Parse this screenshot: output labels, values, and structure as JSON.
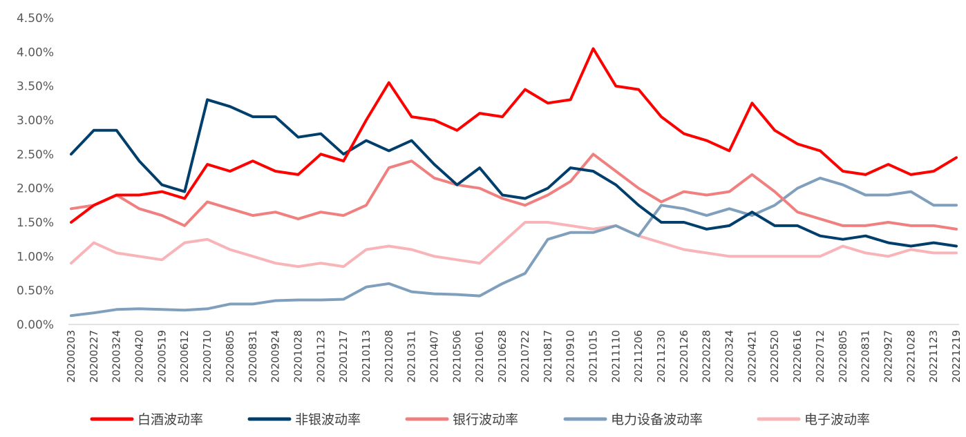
{
  "chart_data": {
    "type": "line",
    "title": "",
    "xlabel": "",
    "ylabel": "",
    "ylim": [
      0,
      0.045
    ],
    "y_ticks": [
      "0.00%",
      "0.50%",
      "1.00%",
      "1.50%",
      "2.00%",
      "2.50%",
      "3.00%",
      "3.50%",
      "4.00%",
      "4.50%"
    ],
    "categories": [
      "20200203",
      "20200227",
      "20200324",
      "20200420",
      "20200519",
      "20200612",
      "20200710",
      "20200805",
      "20200831",
      "20200924",
      "20201028",
      "20201123",
      "20201217",
      "20210113",
      "20210208",
      "20210311",
      "20210407",
      "20210506",
      "20210601",
      "20210628",
      "20210722",
      "20210817",
      "20210910",
      "20211015",
      "20211110",
      "20211206",
      "20211230",
      "20220126",
      "20220228",
      "20220324",
      "20220421",
      "20220520",
      "20220616",
      "20220712",
      "20220805",
      "20220831",
      "20220927",
      "20221028",
      "20221123",
      "20221219"
    ],
    "legend_position": "bottom",
    "grid": false,
    "series": [
      {
        "name": "白酒波动率",
        "color": "#ff0000",
        "values": [
          0.015,
          0.0175,
          0.019,
          0.019,
          0.0195,
          0.0185,
          0.0235,
          0.0225,
          0.024,
          0.0225,
          0.022,
          0.025,
          0.024,
          0.03,
          0.0355,
          0.0305,
          0.03,
          0.0285,
          0.031,
          0.0305,
          0.0345,
          0.0325,
          0.033,
          0.0405,
          0.035,
          0.0345,
          0.0305,
          0.028,
          0.027,
          0.0255,
          0.0325,
          0.0285,
          0.0265,
          0.0255,
          0.0225,
          0.022,
          0.0235,
          0.022,
          0.0225,
          0.0245
        ]
      },
      {
        "name": "非银波动率",
        "color": "#003f6b",
        "values": [
          0.025,
          0.0285,
          0.0285,
          0.024,
          0.0205,
          0.0195,
          0.033,
          0.032,
          0.0305,
          0.0305,
          0.0275,
          0.028,
          0.025,
          0.027,
          0.0255,
          0.027,
          0.0235,
          0.0205,
          0.023,
          0.019,
          0.0185,
          0.02,
          0.023,
          0.0225,
          0.0205,
          0.0175,
          0.015,
          0.015,
          0.014,
          0.0145,
          0.0165,
          0.0145,
          0.0145,
          0.013,
          0.0125,
          0.013,
          0.012,
          0.0115,
          0.012,
          0.0115
        ]
      },
      {
        "name": "银行波动率",
        "color": "#f08080",
        "values": [
          0.017,
          0.0175,
          0.019,
          0.017,
          0.016,
          0.0145,
          0.018,
          0.017,
          0.016,
          0.0165,
          0.0155,
          0.0165,
          0.016,
          0.0175,
          0.023,
          0.024,
          0.0215,
          0.0205,
          0.02,
          0.0185,
          0.0175,
          0.019,
          0.021,
          0.025,
          0.0225,
          0.02,
          0.018,
          0.0195,
          0.019,
          0.0195,
          0.022,
          0.0195,
          0.0165,
          0.0155,
          0.0145,
          0.0145,
          0.015,
          0.0145,
          0.0145,
          0.014
        ]
      },
      {
        "name": "电力设备波动率",
        "color": "#7f9fbc",
        "values": [
          0.0013,
          0.0017,
          0.0022,
          0.0023,
          0.0022,
          0.0021,
          0.0023,
          0.003,
          0.003,
          0.0035,
          0.0036,
          0.0036,
          0.0037,
          0.0055,
          0.006,
          0.0048,
          0.0045,
          0.0044,
          0.0042,
          0.006,
          0.0075,
          0.0125,
          0.0135,
          0.0135,
          0.0145,
          0.013,
          0.0175,
          0.017,
          0.016,
          0.017,
          0.016,
          0.0175,
          0.02,
          0.0215,
          0.0205,
          0.019,
          0.019,
          0.0195,
          0.0175,
          0.0175
        ]
      },
      {
        "name": "电子波动率",
        "color": "#f8b4b8",
        "values": [
          0.009,
          0.012,
          0.0105,
          0.01,
          0.0095,
          0.012,
          0.0125,
          0.011,
          0.01,
          0.009,
          0.0085,
          0.009,
          0.0085,
          0.011,
          0.0115,
          0.011,
          0.01,
          0.0095,
          0.009,
          0.012,
          0.015,
          0.015,
          0.0145,
          0.014,
          0.0145,
          0.013,
          0.012,
          0.011,
          0.0105,
          0.01,
          0.01,
          0.01,
          0.01,
          0.01,
          0.0115,
          0.0105,
          0.01,
          0.011,
          0.0105,
          0.0105
        ]
      }
    ]
  }
}
